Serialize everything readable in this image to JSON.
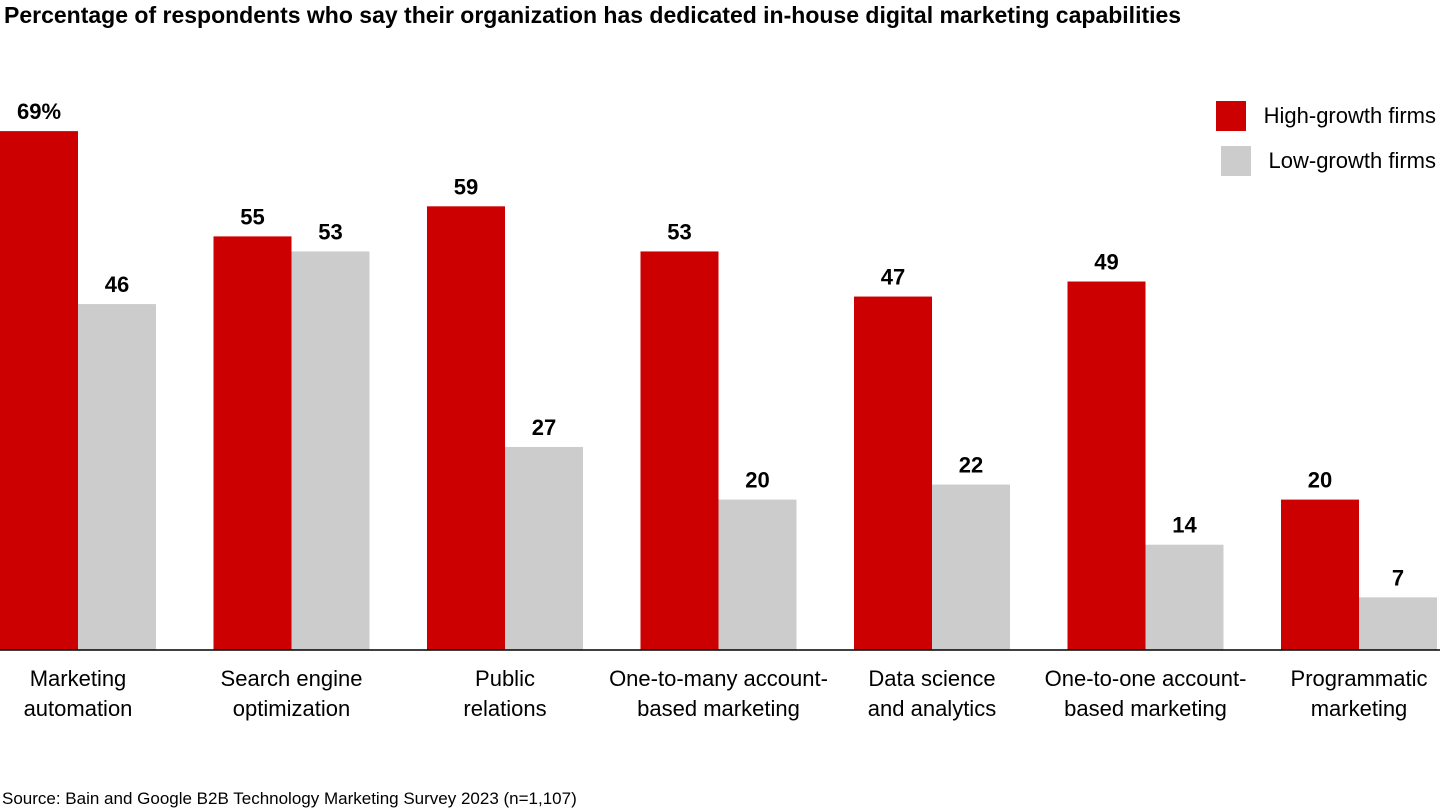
{
  "title": "Percentage of respondents who say their organization has dedicated in-house digital marketing capabilities",
  "legend": {
    "high": "High-growth firms",
    "low": "Low-growth firms"
  },
  "colors": {
    "high": "#cc0000",
    "low": "#cccccc"
  },
  "source": "Source: Bain and Google B2B Technology Marketing Survey 2023 (n=1,107)",
  "chart_data": {
    "type": "bar",
    "categories": [
      "Marketing\nautomation",
      "Search engine\noptimization",
      "Public\nrelations",
      "One-to-many account-\nbased marketing",
      "Data science\nand analytics",
      "One-to-one account-\nbased marketing",
      "Programmatic\nmarketing"
    ],
    "series": [
      {
        "name": "High-growth firms",
        "values": [
          69,
          55,
          59,
          53,
          47,
          49,
          20
        ]
      },
      {
        "name": "Low-growth firms",
        "values": [
          46,
          53,
          27,
          20,
          22,
          14,
          7
        ]
      }
    ],
    "data_labels": {
      "high": [
        "69%",
        "55",
        "59",
        "53",
        "47",
        "49",
        "20"
      ],
      "low": [
        "46",
        "53",
        "27",
        "20",
        "22",
        "14",
        "7"
      ]
    },
    "ylim": [
      0,
      100
    ],
    "grid": false,
    "legend_position": "top-right"
  }
}
